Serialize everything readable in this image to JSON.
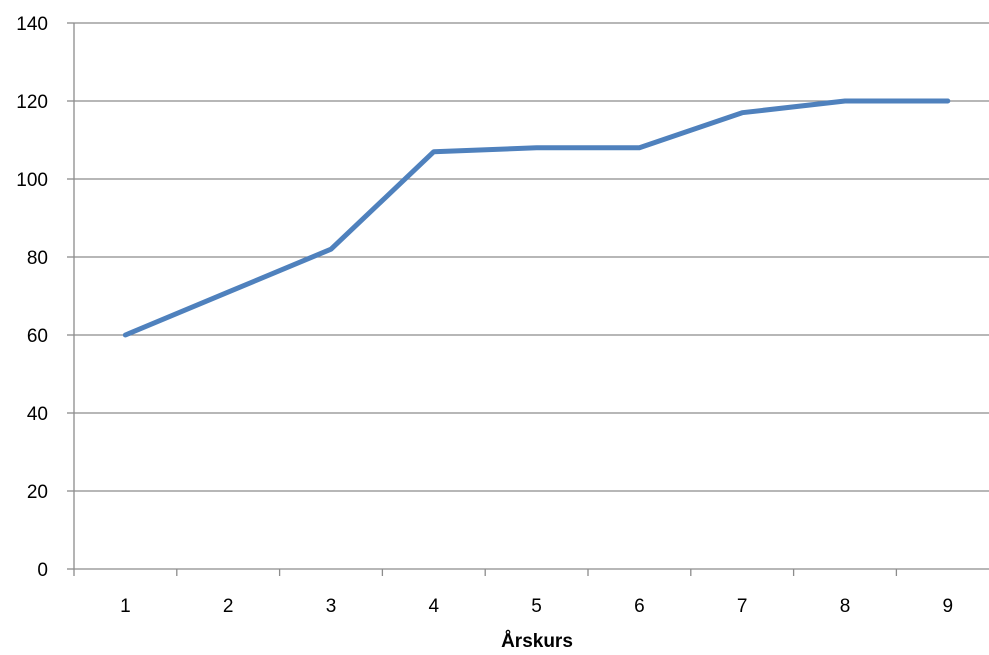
{
  "chart_data": {
    "type": "line",
    "title": "",
    "xlabel": "Årskurs",
    "ylabel": "",
    "categories": [
      "1",
      "2",
      "3",
      "4",
      "5",
      "6",
      "7",
      "8",
      "9"
    ],
    "series": [
      {
        "values": [
          60,
          71,
          82,
          107,
          108,
          108,
          117,
          120,
          120
        ],
        "color": "#4f81bd"
      }
    ],
    "ylim": [
      0,
      140
    ],
    "yticks": [
      0,
      20,
      40,
      60,
      80,
      100,
      120,
      140
    ],
    "grid": true,
    "legend": "none"
  }
}
